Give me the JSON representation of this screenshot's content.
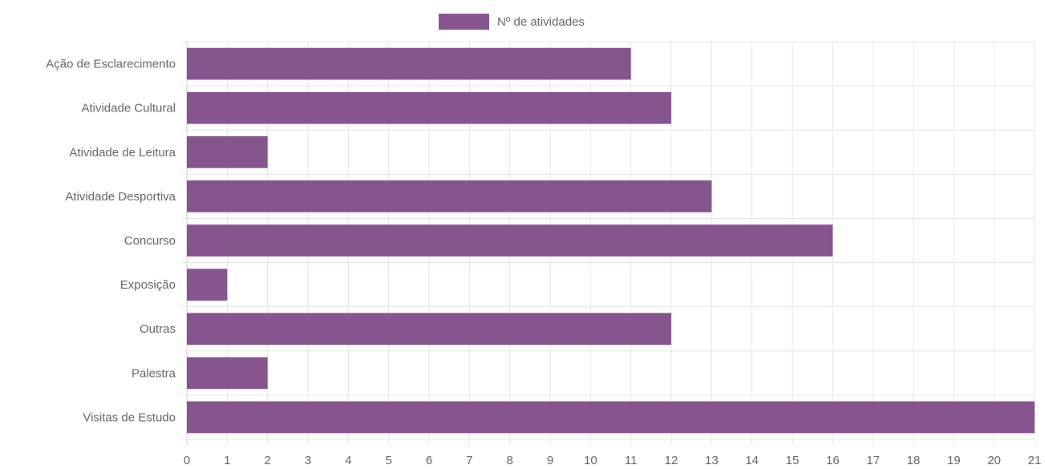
{
  "chart_data": {
    "type": "bar",
    "orientation": "horizontal",
    "categories": [
      "Ação de Esclarecimento",
      "Atividade Cultural",
      "Atividade de Leitura",
      "Atividade Desportiva",
      "Concurso",
      "Exposição",
      "Outras",
      "Palestra",
      "Visitas de Estudo"
    ],
    "series": [
      {
        "name": "Nº de atividades",
        "values": [
          11,
          12,
          2,
          13,
          16,
          1,
          12,
          2,
          21
        ]
      }
    ],
    "xlim": [
      0,
      21
    ],
    "xticks": [
      "0",
      "1",
      "2",
      "3",
      "4",
      "5",
      "6",
      "7",
      "8",
      "9",
      "10",
      "11",
      "12",
      "13",
      "14",
      "15",
      "16",
      "17",
      "18",
      "19",
      "20",
      "21"
    ],
    "grid": true,
    "legend_position": "top-center",
    "colors": {
      "bar": "#86548f",
      "grid": "#e6e6e6",
      "text": "#666666"
    }
  }
}
